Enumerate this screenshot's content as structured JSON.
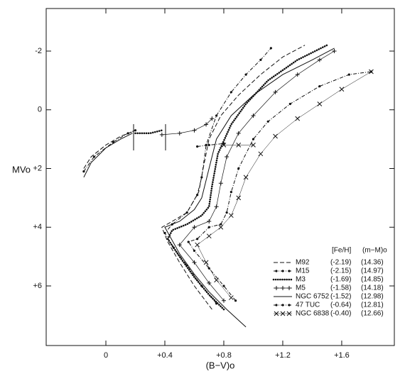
{
  "chart_data": {
    "type": "line",
    "xlabel": "(B−V)o",
    "ylabel": "MVo",
    "xlim": [
      -0.405,
      1.957
    ],
    "ylim": [
      8.03,
      -3.45
    ],
    "xticks": [
      0,
      {
        "value": 0.4,
        "label": "+0.4"
      },
      {
        "value": 0.8,
        "label": "+0.8"
      },
      {
        "value": 1.2,
        "label": "+1.2"
      },
      {
        "value": 1.6,
        "label": "+1.6"
      }
    ],
    "yticks": [
      -2,
      0,
      {
        "value": 2,
        "label": "+2"
      },
      {
        "value": 4,
        "label": "+4"
      },
      {
        "value": 6,
        "label": "+6"
      }
    ],
    "legend_position": "lower right",
    "legend_headers": [
      "[Fe/H]",
      "(m−M)o"
    ],
    "series": [
      {
        "name": "M92",
        "color": "#111",
        "style": "dashed",
        "metallicity": {
          "value": -2.19,
          "label": "(-2.19)"
        },
        "distance_modulus": {
          "value": 14.36,
          "label": "(14.36)"
        },
        "x": [
          -0.15,
          -0.1,
          0,
          0.1,
          0.18,
          null,
          0.72,
          0.6,
          0.5,
          0.42,
          0.38,
          0.45,
          0.55,
          0.63,
          0.66,
          0.7,
          0.78,
          0.9,
          1.05,
          1.2,
          1.35
        ],
        "values": [
          2.0,
          1.6,
          1.2,
          0.9,
          0.75,
          null,
          6.8,
          6.0,
          5.2,
          4.5,
          4.0,
          3.8,
          3.5,
          2.8,
          2.0,
          1.0,
          0.2,
          -0.5,
          -1.2,
          -1.8,
          -2.2
        ]
      },
      {
        "name": "M15",
        "color": "#111",
        "style": "dash-dot-dots",
        "metallicity": {
          "value": -2.15,
          "label": "(-2.15)"
        },
        "distance_modulus": {
          "value": 14.97,
          "label": "(14.97)"
        },
        "x": [
          -0.15,
          -0.08,
          0.05,
          0.15,
          0.2,
          null,
          0.75,
          0.65,
          0.55,
          0.46,
          0.4,
          0.45,
          0.55,
          0.62,
          0.65,
          0.68,
          0.75,
          0.85,
          0.95,
          1.05,
          1.12
        ],
        "values": [
          2.1,
          1.6,
          1.1,
          0.8,
          0.7,
          null,
          6.6,
          6.0,
          5.3,
          4.7,
          4.2,
          3.9,
          3.5,
          2.9,
          2.3,
          1.2,
          0.2,
          -0.6,
          -1.2,
          -1.7,
          -2.1
        ]
      },
      {
        "name": "M3",
        "color": "#111",
        "style": "dotted",
        "metallicity": {
          "value": -1.69,
          "label": "(-1.69)"
        },
        "distance_modulus": {
          "value": 14.85,
          "label": "(14.85)"
        },
        "x": [
          0.2,
          0.25,
          0.3,
          0.38,
          null,
          0.8,
          0.7,
          0.6,
          0.5,
          0.42,
          0.45,
          0.55,
          0.65,
          0.7,
          0.72,
          0.76,
          0.85,
          0.95,
          1.1,
          1.3,
          1.5
        ],
        "values": [
          0.8,
          0.8,
          0.8,
          0.7,
          null,
          6.8,
          6.3,
          5.7,
          5.0,
          4.4,
          4.1,
          3.9,
          3.6,
          3.3,
          2.6,
          1.5,
          0.5,
          -0.2,
          -1.0,
          -1.7,
          -2.2
        ]
      },
      {
        "name": "M5",
        "color": "#111",
        "style": "plus",
        "metallicity": {
          "value": -1.58,
          "label": "(-1.58)"
        },
        "distance_modulus": {
          "value": 14.18,
          "label": "(14.18)"
        },
        "x": [
          0.38,
          0.5,
          0.6,
          0.68,
          0.72,
          null,
          0.8,
          0.7,
          0.6,
          0.5,
          0.6,
          0.7,
          0.75,
          0.78,
          0.82,
          0.9,
          1.0,
          1.15,
          1.3,
          1.45,
          1.55
        ],
        "values": [
          0.85,
          0.8,
          0.7,
          0.5,
          0.3,
          null,
          6.5,
          5.9,
          5.2,
          4.6,
          4.0,
          3.8,
          3.3,
          2.5,
          1.6,
          0.8,
          0.2,
          -0.6,
          -1.2,
          -1.7,
          -2.0
        ]
      },
      {
        "name": "NGC 6752",
        "color": "#111",
        "style": "solid",
        "metallicity": {
          "value": -1.52,
          "label": "(-1.52)"
        },
        "distance_modulus": {
          "value": 12.98,
          "label": "(12.98)"
        },
        "x": [
          -0.15,
          -0.1,
          0,
          0.1,
          0.18,
          null,
          0.95,
          0.82,
          0.7,
          0.6,
          0.5,
          0.4,
          0.5,
          0.6,
          0.65,
          0.7,
          0.75,
          0.85,
          1.0,
          1.2,
          1.4,
          1.55
        ],
        "values": [
          2.3,
          1.8,
          1.3,
          1.0,
          0.8,
          null,
          7.4,
          6.8,
          6.2,
          5.6,
          4.9,
          4.0,
          3.8,
          3.4,
          3.0,
          2.0,
          1.0,
          0.2,
          -0.5,
          -1.2,
          -1.7,
          -2.1
        ]
      },
      {
        "name": "47 TUC",
        "color": "#111",
        "style": "dash-dot-dots",
        "metallicity": {
          "value": -0.64,
          "label": "(-0.64)"
        },
        "distance_modulus": {
          "value": 12.81,
          "label": "(12.81)"
        },
        "x": [
          0.62,
          0.7,
          0.8,
          null,
          0.88,
          0.8,
          0.7,
          0.6,
          0.56,
          0.62,
          0.7,
          0.78,
          0.82,
          0.85,
          0.9,
          1.0,
          1.1,
          1.25,
          1.45,
          1.65,
          1.8
        ],
        "values": [
          1.25,
          1.2,
          1.15,
          null,
          6.5,
          6.0,
          5.4,
          4.8,
          4.5,
          4.4,
          4.0,
          3.9,
          3.5,
          2.8,
          2.0,
          1.0,
          0.4,
          -0.2,
          -0.8,
          -1.2,
          -1.3
        ]
      },
      {
        "name": "NGC 6838",
        "color": "#111",
        "style": "cross",
        "metallicity": {
          "value": -0.4,
          "label": "(-0.40)"
        },
        "distance_modulus": {
          "value": 12.66,
          "label": "(12.66)"
        },
        "x": [
          0.8,
          0.9,
          1.0,
          null,
          0.85,
          0.75,
          0.68,
          0.62,
          0.7,
          0.78,
          0.85,
          0.9,
          0.95,
          1.05,
          1.15,
          1.3,
          1.45,
          1.6,
          1.8
        ],
        "values": [
          1.2,
          1.2,
          1.2,
          null,
          6.4,
          5.8,
          5.2,
          4.6,
          4.3,
          4.0,
          3.6,
          3.0,
          2.3,
          1.5,
          0.9,
          0.3,
          -0.2,
          -0.7,
          -1.3
        ]
      }
    ]
  }
}
